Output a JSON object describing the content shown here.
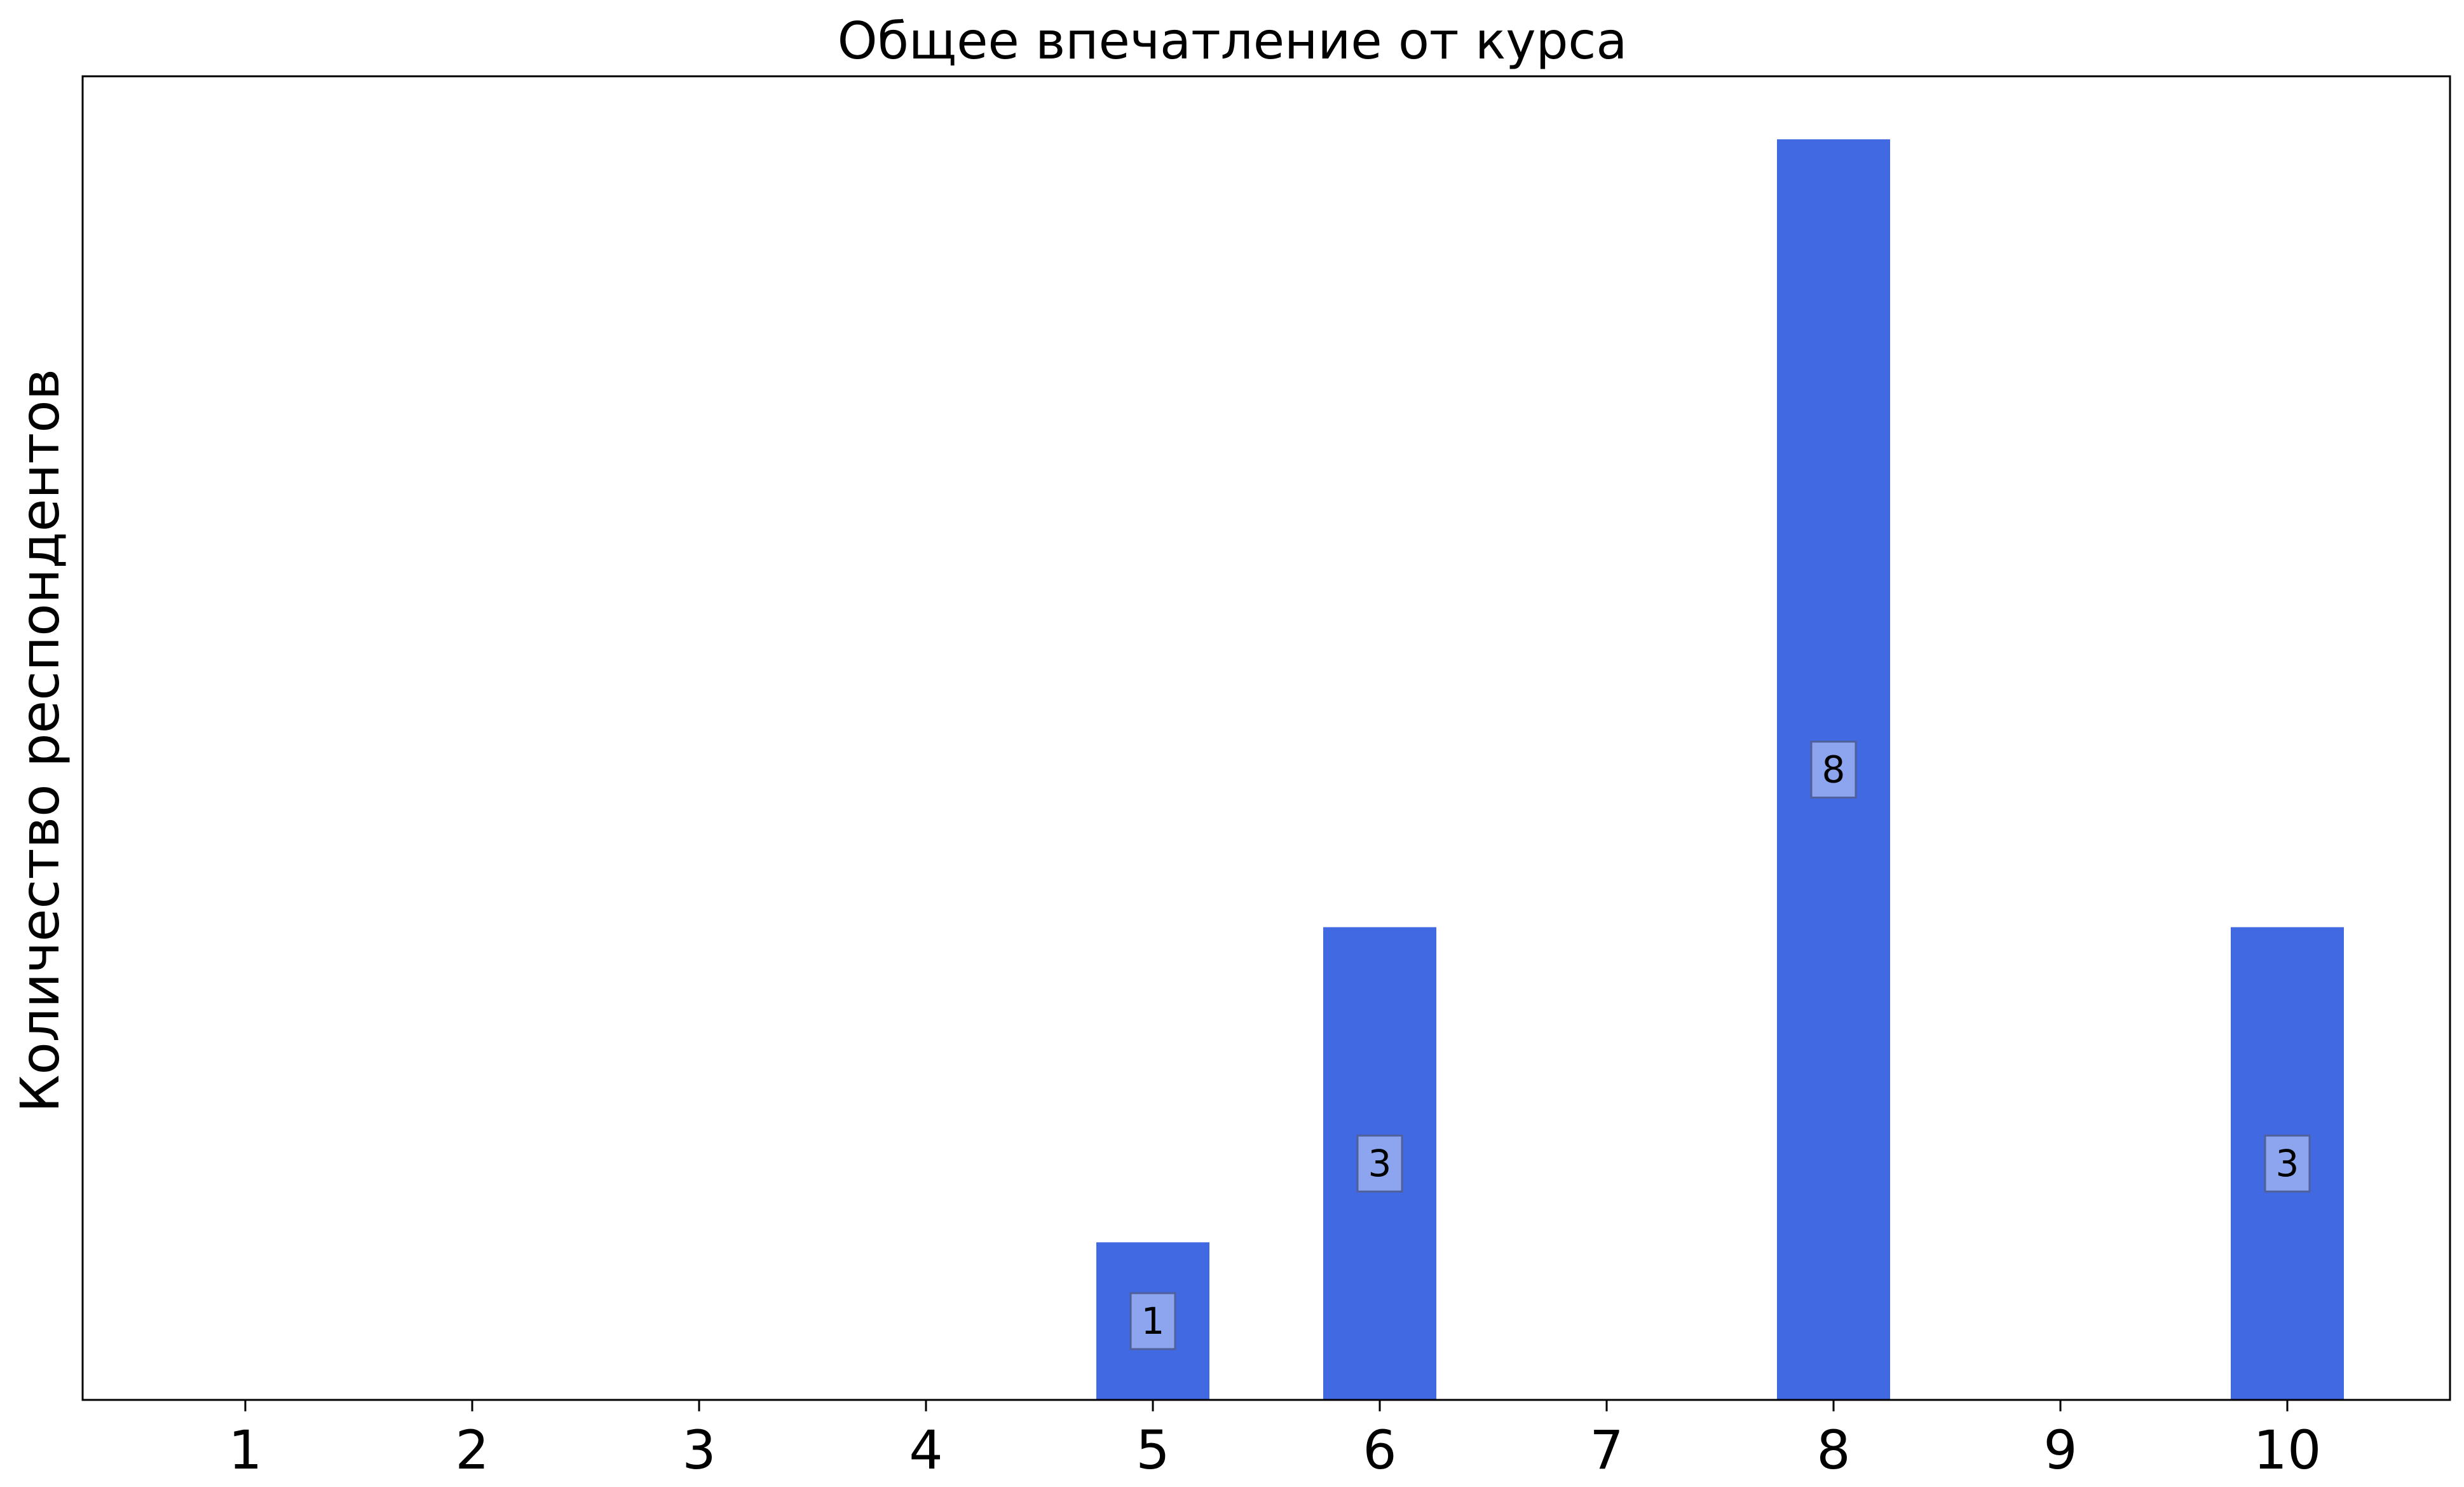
{
  "chart_data": {
    "type": "bar",
    "title": "Общее впечатление от курса",
    "xlabel": "",
    "ylabel": "Количество респондентов",
    "categories": [
      "1",
      "2",
      "3",
      "4",
      "5",
      "6",
      "7",
      "8",
      "9",
      "10"
    ],
    "values": [
      0,
      0,
      0,
      0,
      1,
      3,
      0,
      8,
      0,
      3
    ],
    "data_labels": [
      "",
      "",
      "",
      "",
      "1",
      "3",
      "",
      "8",
      "",
      "3"
    ],
    "ylim": [
      0,
      8.4
    ],
    "y_ticks_visible": false,
    "grid": false,
    "legend": "none",
    "colors": {
      "bar": "#4169e1",
      "label_box_fill": "#8da5ee",
      "label_box_edge": "#50609a",
      "axis": "#000000",
      "text": "#000000"
    }
  }
}
